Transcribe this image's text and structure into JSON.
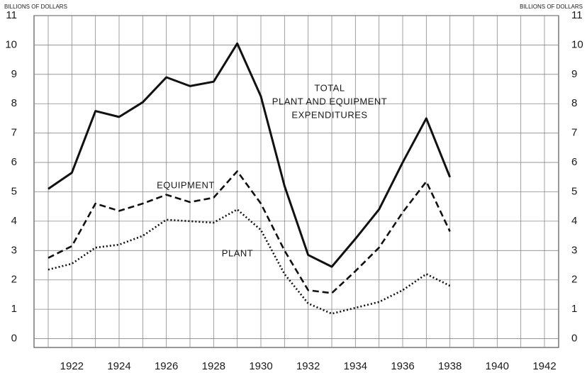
{
  "chart_data": {
    "type": "line",
    "y_label": "BILLIONS OF DOLLARS",
    "y2_label": "BILLIONS OF DOLLARS",
    "x": [
      1921,
      1922,
      1923,
      1924,
      1925,
      1926,
      1927,
      1928,
      1929,
      1930,
      1931,
      1932,
      1933,
      1934,
      1935,
      1936,
      1937,
      1938
    ],
    "series": [
      {
        "label_lines": [
          "TOTAL",
          "PLANT AND EQUIPMENT",
          "EXPENDITURES"
        ],
        "style": "solid",
        "color": "#111111",
        "values": [
          5.1,
          5.65,
          7.75,
          7.55,
          8.05,
          8.9,
          8.6,
          8.75,
          10.05,
          8.25,
          5.2,
          2.85,
          2.45,
          3.4,
          4.4,
          6.0,
          7.5,
          5.5
        ]
      },
      {
        "name": "EQUIPMENT",
        "style": "dashed",
        "color": "#111111",
        "values": [
          2.75,
          3.15,
          4.6,
          4.35,
          4.6,
          4.9,
          4.65,
          4.8,
          5.7,
          4.6,
          3.0,
          1.65,
          1.55,
          2.3,
          3.1,
          4.3,
          5.35,
          3.65
        ]
      },
      {
        "name": "PLANT",
        "style": "dotted",
        "color": "#111111",
        "values": [
          2.35,
          2.55,
          3.1,
          3.2,
          3.5,
          4.05,
          4.0,
          3.95,
          4.4,
          3.7,
          2.2,
          1.2,
          0.85,
          1.05,
          1.25,
          1.65,
          2.2,
          1.8
        ]
      }
    ],
    "xlim": [
      1920.4,
      1942.6
    ],
    "xticks": [
      1922,
      1924,
      1926,
      1928,
      1930,
      1932,
      1934,
      1936,
      1938,
      1940,
      1942
    ],
    "ylim": [
      -0.3,
      11
    ],
    "yticks": [
      0,
      1,
      2,
      3,
      4,
      5,
      6,
      7,
      8,
      9,
      10,
      11
    ],
    "y2lim": [
      -0.3,
      11
    ],
    "y2ticks": [
      0,
      1,
      2,
      3,
      4,
      5,
      6,
      7,
      8,
      9,
      10,
      11
    ],
    "grid": true
  }
}
